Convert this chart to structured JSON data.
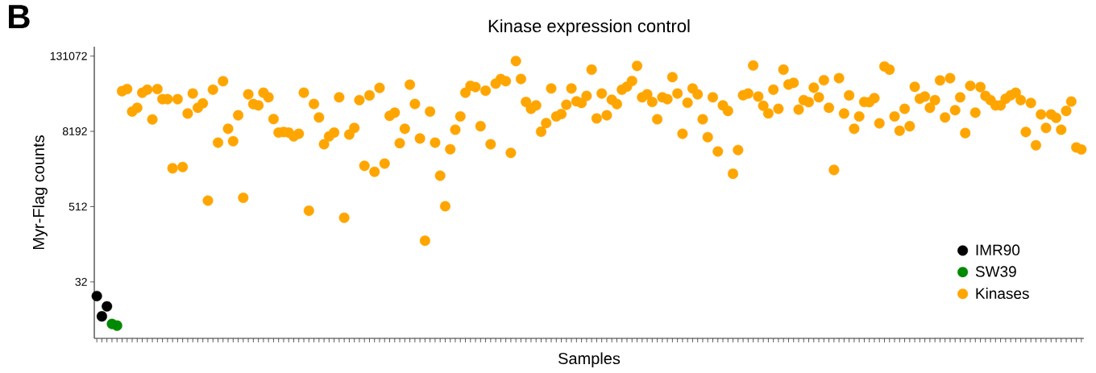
{
  "chart_data": {
    "type": "scatter",
    "title": "Kinase expression control",
    "xlabel": "Samples",
    "ylabel": "Myr-Flag counts",
    "annotations": [
      "B"
    ],
    "categories": [
      null,
      null,
      null,
      null,
      null,
      null,
      null,
      null,
      null,
      null,
      null,
      null,
      null,
      null,
      null,
      null,
      null,
      null,
      null,
      null,
      null,
      null,
      null,
      null,
      null,
      null,
      null,
      null,
      null,
      null,
      null,
      null,
      null,
      null,
      null,
      null,
      null,
      null,
      null,
      null,
      null,
      null,
      null,
      null,
      null,
      null,
      null,
      null,
      null,
      null,
      null,
      null,
      null,
      null,
      null,
      null,
      null,
      null,
      null,
      null,
      null,
      null,
      null,
      null,
      null,
      null,
      null,
      null,
      null,
      null,
      null,
      null,
      null,
      null,
      null,
      null,
      null,
      null,
      null,
      null,
      null,
      null,
      null,
      null,
      null,
      null,
      null,
      null,
      null,
      null,
      null,
      null,
      null,
      null,
      null,
      null,
      null,
      null,
      null,
      null,
      null,
      null,
      null,
      null,
      null,
      null,
      null,
      null,
      null,
      null,
      null,
      null,
      null,
      null,
      null,
      null,
      null,
      null,
      null,
      null,
      null,
      null,
      null,
      null,
      null,
      null,
      null,
      null,
      null,
      null,
      null,
      null,
      null,
      null,
      null,
      null,
      null,
      null,
      null,
      null,
      null,
      null,
      null,
      null,
      null,
      null,
      null,
      null,
      null,
      null,
      null,
      null,
      null,
      null,
      null,
      null,
      null,
      null,
      null,
      null,
      null,
      null,
      null,
      null,
      null,
      null,
      null,
      null,
      null,
      null,
      null,
      null,
      null,
      null,
      null,
      null,
      null,
      null,
      null,
      null,
      null,
      null,
      null,
      null,
      null,
      null,
      null,
      null,
      null,
      null,
      null,
      null,
      null,
      null,
      null,
      null
    ],
    "series": [
      {
        "name": "IMR90",
        "color": "#000000",
        "values": [
          19,
          9,
          13,
          null,
          null,
          null,
          null,
          null,
          null,
          null,
          null,
          null,
          null,
          null,
          null,
          null,
          null,
          null,
          null,
          null,
          null,
          null,
          null,
          null,
          null,
          null,
          null,
          null,
          null,
          null,
          null,
          null,
          null,
          null,
          null,
          null,
          null,
          null,
          null,
          null,
          null,
          null,
          null,
          null,
          null,
          null,
          null,
          null,
          null,
          null,
          null,
          null,
          null,
          null,
          null,
          null,
          null,
          null,
          null,
          null,
          null,
          null,
          null,
          null,
          null,
          null,
          null,
          null,
          null,
          null,
          null,
          null,
          null,
          null,
          null,
          null,
          null,
          null,
          null,
          null,
          null,
          null,
          null,
          null,
          null,
          null,
          null,
          null,
          null,
          null,
          null,
          null,
          null,
          null,
          null,
          null,
          null,
          null,
          null,
          null,
          null,
          null,
          null,
          null,
          null,
          null,
          null,
          null,
          null,
          null,
          null,
          null,
          null,
          null,
          null,
          null,
          null,
          null,
          null,
          null,
          null,
          null,
          null,
          null,
          null,
          null,
          null,
          null,
          null,
          null,
          null,
          null,
          null,
          null,
          null,
          null,
          null,
          null,
          null,
          null,
          null,
          null,
          null,
          null,
          null,
          null,
          null,
          null,
          null,
          null,
          null,
          null,
          null,
          null,
          null,
          null,
          null,
          null,
          null,
          null,
          null,
          null,
          null,
          null,
          null,
          null,
          null,
          null,
          null,
          null,
          null,
          null,
          null,
          null,
          null,
          null,
          null,
          null,
          null,
          null,
          null,
          null,
          null,
          null,
          null,
          null,
          null,
          null,
          null,
          null,
          null,
          null,
          null,
          null,
          null,
          null
        ]
      },
      {
        "name": "SW39",
        "color": "#008a00",
        "values": [
          null,
          null,
          null,
          6.8,
          6.4,
          null,
          null,
          null,
          null,
          null,
          null,
          null,
          null,
          null,
          null,
          null,
          null,
          null,
          null,
          null,
          null,
          null,
          null,
          null,
          null,
          null,
          null,
          null,
          null,
          null,
          null,
          null,
          null,
          null,
          null,
          null,
          null,
          null,
          null,
          null,
          null,
          null,
          null,
          null,
          null,
          null,
          null,
          null,
          null,
          null,
          null,
          null,
          null,
          null,
          null,
          null,
          null,
          null,
          null,
          null,
          null,
          null,
          null,
          null,
          null,
          null,
          null,
          null,
          null,
          null,
          null,
          null,
          null,
          null,
          null,
          null,
          null,
          null,
          null,
          null,
          null,
          null,
          null,
          null,
          null,
          null,
          null,
          null,
          null,
          null,
          null,
          null,
          null,
          null,
          null,
          null,
          null,
          null,
          null,
          null,
          null,
          null,
          null,
          null,
          null,
          null,
          null,
          null,
          null,
          null,
          null,
          null,
          null,
          null,
          null,
          null,
          null,
          null,
          null,
          null,
          null,
          null,
          null,
          null,
          null,
          null,
          null,
          null,
          null,
          null,
          null,
          null,
          null,
          null,
          null,
          null,
          null,
          null,
          null,
          null,
          null,
          null,
          null,
          null,
          null,
          null,
          null,
          null,
          null,
          null,
          null,
          null,
          null,
          null,
          null,
          null,
          null,
          null,
          null,
          null,
          null,
          null,
          null,
          null,
          null,
          null,
          null,
          null,
          null,
          null,
          null,
          null,
          null,
          null,
          null,
          null,
          null,
          null,
          null,
          null,
          null,
          null,
          null,
          null,
          null,
          null,
          null,
          null,
          null,
          null,
          null,
          null,
          null,
          null,
          null,
          null
        ]
      },
      {
        "name": "Kinases",
        "color": "#ffa500",
        "values": [
          null,
          null,
          null,
          null,
          null,
          36000,
          39000,
          17000,
          19500,
          34000,
          38000,
          12700,
          39000,
          26800,
          26800,
          2100,
          26800,
          2200,
          15800,
          33000,
          19500,
          23000,
          640,
          38000,
          5400,
          52000,
          9000,
          5700,
          14800,
          710,
          32000,
          22400,
          21300,
          34000,
          28700,
          12900,
          7850,
          8000,
          7850,
          6800,
          7500,
          34000,
          440,
          22500,
          13700,
          5100,
          6800,
          7850,
          28700,
          340,
          7300,
          9300,
          25900,
          2300,
          30800,
          1850,
          40600,
          2500,
          14500,
          16300,
          5300,
          9000,
          45700,
          22500,
          6300,
          146,
          17000,
          5400,
          1600,
          520,
          4240,
          8700,
          14200,
          34000,
          43800,
          41800,
          9900,
          36600,
          5100,
          47600,
          56300,
          52000,
          3700,
          109000,
          56300,
          24200,
          18800,
          21300,
          8100,
          11100,
          39800,
          14200,
          15500,
          21800,
          39800,
          24800,
          23300,
          30200,
          79600,
          13200,
          33000,
          14800,
          26200,
          22400,
          38000,
          42600,
          52500,
          91400,
          28700,
          32000,
          24200,
          12800,
          28700,
          26800,
          60300,
          33000,
          7500,
          23500,
          39800,
          32000,
          12800,
          6600,
          28700,
          3900,
          21300,
          17400,
          1720,
          4120,
          31000,
          33000,
          92700,
          29500,
          21000,
          15900,
          38000,
          18800,
          79600,
          46000,
          48900,
          18300,
          25900,
          24000,
          40900,
          28700,
          53900,
          19500,
          1980,
          58200,
          15800,
          30800,
          9000,
          14200,
          24200,
          24000,
          27800,
          11000,
          89500,
          79600,
          14200,
          8400,
          18800,
          9900,
          42300,
          27200,
          29500,
          19500,
          25900,
          53500,
          13700,
          58200,
          17900,
          28700,
          7700,
          43800,
          16300,
          41800,
          30200,
          25900,
          21300,
          21300,
          27200,
          31000,
          34000,
          25900,
          8000,
          23300,
          4900,
          15300,
          9300,
          15300,
          13500,
          8700,
          17400,
          24600,
          4540,
          4200
        ]
      }
    ],
    "log": "y",
    "ylim": [
      4,
      185000
    ],
    "yticks": [
      32,
      512,
      8192,
      131072
    ],
    "marker": "circle",
    "legend": "bottom right"
  }
}
